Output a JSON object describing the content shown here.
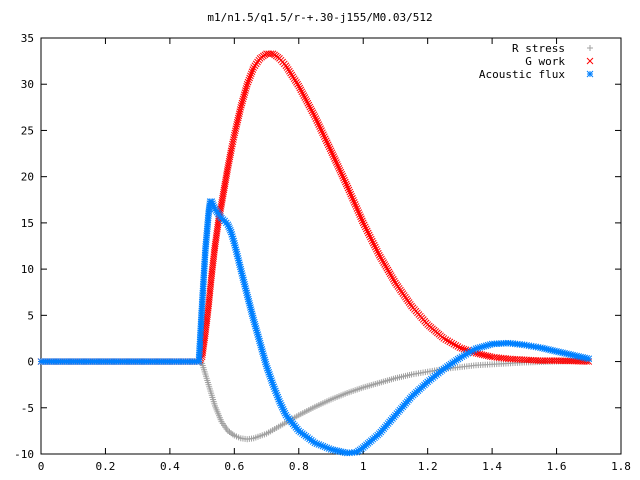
{
  "chart_data": {
    "type": "scatter",
    "title": "m1/n1.5/q1.5/r-+.30-j155/M0.03/512",
    "xlabel": "",
    "ylabel": "",
    "xlim": [
      0,
      1.8
    ],
    "ylim": [
      -10,
      35
    ],
    "xticks": [
      "0",
      "0.2",
      "0.4",
      "0.6",
      "0.8",
      "1",
      "1.2",
      "1.4",
      "1.6",
      "1.8"
    ],
    "yticks": [
      "-10",
      "-5",
      "0",
      "5",
      "10",
      "15",
      "20",
      "25",
      "30",
      "35"
    ],
    "grid": false,
    "legend_position": "top-right",
    "series": [
      {
        "name": "R stress",
        "marker": "plus",
        "color": "#a0a0a0",
        "points": [
          [
            0,
            0
          ],
          [
            0.1,
            0
          ],
          [
            0.2,
            0
          ],
          [
            0.3,
            0
          ],
          [
            0.4,
            0
          ],
          [
            0.49,
            0
          ],
          [
            0.5,
            -0.2
          ],
          [
            0.52,
            -2.5
          ],
          [
            0.54,
            -4.8
          ],
          [
            0.56,
            -6.5
          ],
          [
            0.58,
            -7.5
          ],
          [
            0.6,
            -8
          ],
          [
            0.62,
            -8.3
          ],
          [
            0.64,
            -8.4
          ],
          [
            0.66,
            -8.3
          ],
          [
            0.7,
            -7.8
          ],
          [
            0.75,
            -6.8
          ],
          [
            0.8,
            -5.8
          ],
          [
            0.85,
            -4.9
          ],
          [
            0.9,
            -4.1
          ],
          [
            0.95,
            -3.4
          ],
          [
            1.0,
            -2.8
          ],
          [
            1.05,
            -2.3
          ],
          [
            1.1,
            -1.8
          ],
          [
            1.15,
            -1.4
          ],
          [
            1.2,
            -1.1
          ],
          [
            1.25,
            -0.8
          ],
          [
            1.3,
            -0.6
          ],
          [
            1.35,
            -0.4
          ],
          [
            1.4,
            -0.3
          ],
          [
            1.45,
            -0.2
          ],
          [
            1.5,
            -0.1
          ],
          [
            1.6,
            0
          ],
          [
            1.7,
            0.1
          ]
        ]
      },
      {
        "name": "G work",
        "marker": "cross",
        "color": "#ff0000",
        "points": [
          [
            0,
            0
          ],
          [
            0.1,
            0
          ],
          [
            0.2,
            0
          ],
          [
            0.3,
            0
          ],
          [
            0.4,
            0
          ],
          [
            0.49,
            0
          ],
          [
            0.5,
            0.5
          ],
          [
            0.51,
            3
          ],
          [
            0.52,
            6
          ],
          [
            0.53,
            9.5
          ],
          [
            0.54,
            12.5
          ],
          [
            0.55,
            15
          ],
          [
            0.56,
            17
          ],
          [
            0.57,
            19
          ],
          [
            0.58,
            21
          ],
          [
            0.59,
            22.8
          ],
          [
            0.6,
            24.5
          ],
          [
            0.62,
            27.5
          ],
          [
            0.64,
            30
          ],
          [
            0.66,
            31.8
          ],
          [
            0.68,
            32.8
          ],
          [
            0.7,
            33.3
          ],
          [
            0.72,
            33.3
          ],
          [
            0.74,
            32.8
          ],
          [
            0.76,
            32
          ],
          [
            0.8,
            29.8
          ],
          [
            0.85,
            26.5
          ],
          [
            0.9,
            22.8
          ],
          [
            0.95,
            19
          ],
          [
            1.0,
            15
          ],
          [
            1.05,
            11.5
          ],
          [
            1.1,
            8.5
          ],
          [
            1.15,
            6
          ],
          [
            1.2,
            4
          ],
          [
            1.25,
            2.5
          ],
          [
            1.3,
            1.5
          ],
          [
            1.35,
            0.9
          ],
          [
            1.4,
            0.5
          ],
          [
            1.45,
            0.3
          ],
          [
            1.5,
            0.2
          ],
          [
            1.55,
            0.1
          ],
          [
            1.6,
            0.1
          ],
          [
            1.7,
            0
          ]
        ]
      },
      {
        "name": "Acoustic flux",
        "marker": "star",
        "color": "#0080ff",
        "points": [
          [
            0,
            0
          ],
          [
            0.1,
            0
          ],
          [
            0.2,
            0
          ],
          [
            0.3,
            0
          ],
          [
            0.4,
            0
          ],
          [
            0.49,
            0
          ],
          [
            0.5,
            6.2
          ],
          [
            0.51,
            12
          ],
          [
            0.52,
            16
          ],
          [
            0.525,
            17.3
          ],
          [
            0.53,
            17.3
          ],
          [
            0.54,
            16.5
          ],
          [
            0.55,
            16
          ],
          [
            0.56,
            15.5
          ],
          [
            0.57,
            15.2
          ],
          [
            0.58,
            14.8
          ],
          [
            0.59,
            14
          ],
          [
            0.6,
            12.8
          ],
          [
            0.62,
            10
          ],
          [
            0.64,
            7.2
          ],
          [
            0.66,
            4.5
          ],
          [
            0.68,
            2
          ],
          [
            0.7,
            -0.5
          ],
          [
            0.72,
            -2.5
          ],
          [
            0.74,
            -4.3
          ],
          [
            0.76,
            -5.8
          ],
          [
            0.8,
            -7.5
          ],
          [
            0.85,
            -8.8
          ],
          [
            0.9,
            -9.5
          ],
          [
            0.95,
            -9.9
          ],
          [
            0.98,
            -9.8
          ],
          [
            1.0,
            -9.3
          ],
          [
            1.05,
            -7.8
          ],
          [
            1.1,
            -5.8
          ],
          [
            1.15,
            -3.8
          ],
          [
            1.2,
            -2.2
          ],
          [
            1.25,
            -0.8
          ],
          [
            1.3,
            0.4
          ],
          [
            1.35,
            1.4
          ],
          [
            1.4,
            1.9
          ],
          [
            1.45,
            2
          ],
          [
            1.5,
            1.8
          ],
          [
            1.55,
            1.5
          ],
          [
            1.6,
            1.1
          ],
          [
            1.65,
            0.7
          ],
          [
            1.7,
            0.3
          ]
        ]
      }
    ]
  }
}
